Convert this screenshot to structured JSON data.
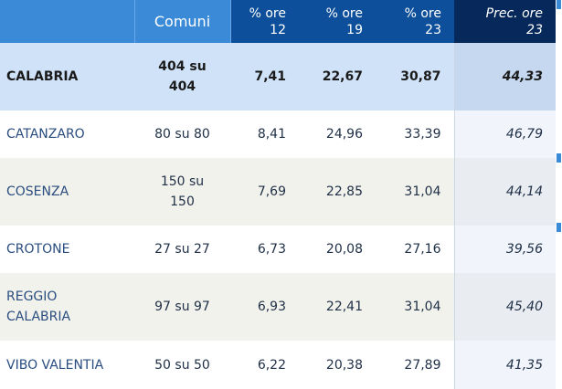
{
  "table": {
    "headers": {
      "region": "",
      "comuni": "Comuni",
      "h12_top": "% ore",
      "h12_bottom": "12",
      "h19_top": "% ore",
      "h19_bottom": "19",
      "h23_top": "% ore",
      "h23_bottom": "23",
      "prec_top": "Prec. ore",
      "prec_bottom": "23"
    },
    "rows": [
      {
        "name_1": "CALABRIA",
        "name_2": "",
        "comuni_1": "404 su",
        "comuni_2": "404",
        "h12": "7,41",
        "h19": "22,67",
        "h23": "30,87",
        "prec": "44,33"
      },
      {
        "name_1": "CATANZARO",
        "name_2": "",
        "comuni_1": "80 su 80",
        "comuni_2": "",
        "h12": "8,41",
        "h19": "24,96",
        "h23": "33,39",
        "prec": "46,79"
      },
      {
        "name_1": "COSENZA",
        "name_2": "",
        "comuni_1": "150 su",
        "comuni_2": "150",
        "h12": "7,69",
        "h19": "22,85",
        "h23": "31,04",
        "prec": "44,14"
      },
      {
        "name_1": "CROTONE",
        "name_2": "",
        "comuni_1": "27 su 27",
        "comuni_2": "",
        "h12": "6,73",
        "h19": "20,08",
        "h23": "27,16",
        "prec": "39,56"
      },
      {
        "name_1": "REGGIO",
        "name_2": "CALABRIA",
        "comuni_1": "97 su 97",
        "comuni_2": "",
        "h12": "6,93",
        "h19": "22,41",
        "h23": "31,04",
        "prec": "45,40"
      },
      {
        "name_1": "VIBO VALENTIA",
        "name_2": "",
        "comuni_1": "50 su 50",
        "comuni_2": "",
        "h12": "6,22",
        "h19": "20,38",
        "h23": "27,89",
        "prec": "41,35"
      }
    ]
  },
  "colors": {
    "header_light": "#3a8ad8",
    "header_mid": "#0d4f9a",
    "header_dark": "#06285a",
    "total_row": "#cfe2f8",
    "alt_row": "#f2f2ec",
    "link_text": "#2a4d80"
  }
}
